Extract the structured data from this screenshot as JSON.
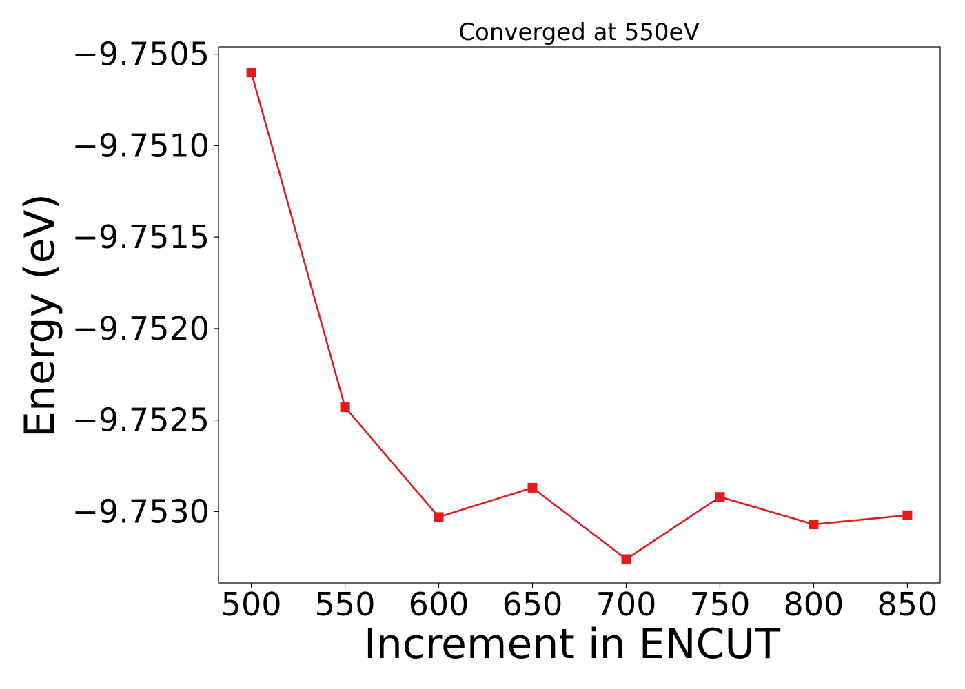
{
  "chart_data": {
    "type": "line",
    "title": "Converged at 550eV",
    "xlabel": "Increment in ENCUT",
    "ylabel": "Energy (eV)",
    "x": [
      500,
      550,
      600,
      650,
      700,
      750,
      800,
      850
    ],
    "series": [
      {
        "values": [
          -9.7506,
          -9.75243,
          -9.75303,
          -9.75287,
          -9.75326,
          -9.75292,
          -9.75307,
          -9.75302
        ],
        "color": "#e41a1c",
        "marker": "square"
      }
    ],
    "xlim": [
      482.5,
      867.5
    ],
    "ylim": [
      -9.75339,
      -9.75046
    ],
    "xticks": [
      500,
      550,
      600,
      650,
      700,
      750,
      800,
      850
    ],
    "xtick_labels": [
      "500",
      "550",
      "600",
      "650",
      "700",
      "750",
      "800",
      "850"
    ],
    "yticks": [
      -9.7505,
      -9.751,
      -9.7515,
      -9.752,
      -9.7525,
      -9.753
    ],
    "ytick_labels": [
      "−9.7505",
      "−9.7510",
      "−9.7515",
      "−9.7520",
      "−9.7525",
      "−9.7530"
    ],
    "grid": false,
    "legend": "none"
  }
}
